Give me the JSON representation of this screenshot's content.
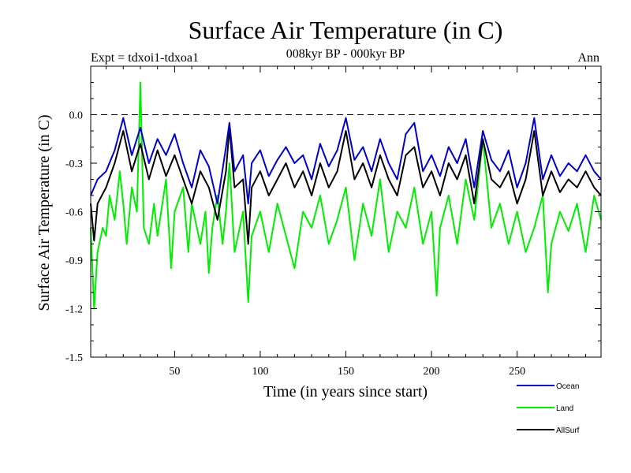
{
  "chart_data": {
    "type": "line",
    "title": "Surface Air Temperature (in C)",
    "subtitle": "008kyr BP - 000kyr BP",
    "experiment": "Expt = tdxoi1-tdxoa1",
    "period": "Ann",
    "xlabel": "Time (in years since start)",
    "ylabel": "Surface Air Temperature (in C)",
    "xlim": [
      1,
      299
    ],
    "ylim": [
      -1.5,
      0.3
    ],
    "xticks": [
      50,
      100,
      150,
      200,
      250
    ],
    "yticks": [
      -1.5,
      -1.2,
      -0.9,
      -0.6,
      -0.3,
      0.0
    ],
    "ytick_labels": [
      "-1.5",
      "-1.2",
      "-0.9",
      "-0.6",
      "-0.3",
      "0.0"
    ],
    "reference_line": 0.0,
    "legend": [
      "Ocean",
      "Land",
      "AllSurf"
    ],
    "series": [
      {
        "name": "Ocean",
        "color": "#0000cc",
        "x": [
          1,
          5,
          10,
          15,
          20,
          25,
          30,
          35,
          40,
          45,
          50,
          55,
          60,
          65,
          70,
          75,
          80,
          82,
          85,
          90,
          93,
          95,
          100,
          105,
          110,
          115,
          120,
          125,
          130,
          135,
          140,
          145,
          150,
          155,
          160,
          165,
          170,
          175,
          180,
          185,
          190,
          195,
          200,
          205,
          210,
          215,
          220,
          225,
          230,
          235,
          240,
          245,
          250,
          255,
          260,
          265,
          270,
          275,
          280,
          285,
          290,
          295,
          299
        ],
        "values": [
          -0.5,
          -0.4,
          -0.35,
          -0.22,
          -0.02,
          -0.25,
          -0.08,
          -0.3,
          -0.15,
          -0.25,
          -0.12,
          -0.3,
          -0.45,
          -0.22,
          -0.32,
          -0.55,
          -0.2,
          -0.05,
          -0.35,
          -0.25,
          -0.55,
          -0.3,
          -0.22,
          -0.38,
          -0.28,
          -0.2,
          -0.3,
          -0.25,
          -0.4,
          -0.18,
          -0.32,
          -0.22,
          -0.02,
          -0.28,
          -0.2,
          -0.35,
          -0.15,
          -0.3,
          -0.4,
          -0.12,
          -0.05,
          -0.35,
          -0.25,
          -0.38,
          -0.2,
          -0.3,
          -0.15,
          -0.45,
          -0.1,
          -0.28,
          -0.35,
          -0.22,
          -0.45,
          -0.3,
          -0.02,
          -0.4,
          -0.25,
          -0.38,
          -0.3,
          -0.35,
          -0.25,
          -0.35,
          -0.4
        ]
      },
      {
        "name": "Land",
        "color": "#00ee00",
        "x": [
          1,
          3,
          5,
          8,
          10,
          12,
          15,
          18,
          20,
          22,
          25,
          28,
          30,
          32,
          35,
          38,
          40,
          45,
          48,
          50,
          55,
          58,
          60,
          65,
          68,
          70,
          72,
          75,
          78,
          80,
          82,
          85,
          88,
          90,
          93,
          95,
          100,
          105,
          110,
          115,
          120,
          125,
          130,
          135,
          140,
          145,
          150,
          155,
          160,
          165,
          170,
          175,
          180,
          185,
          190,
          195,
          200,
          203,
          205,
          210,
          215,
          220,
          225,
          230,
          235,
          240,
          245,
          250,
          255,
          260,
          265,
          268,
          270,
          275,
          280,
          285,
          290,
          295,
          299
        ],
        "values": [
          -0.7,
          -1.2,
          -0.85,
          -0.7,
          -0.75,
          -0.5,
          -0.65,
          -0.35,
          -0.55,
          -0.8,
          -0.45,
          -0.6,
          0.2,
          -0.7,
          -0.8,
          -0.55,
          -0.75,
          -0.4,
          -0.95,
          -0.6,
          -0.45,
          -0.85,
          -0.55,
          -0.8,
          -0.6,
          -0.98,
          -0.7,
          -0.5,
          -0.8,
          -0.6,
          -0.3,
          -0.85,
          -0.7,
          -0.6,
          -1.16,
          -0.75,
          -0.6,
          -0.85,
          -0.55,
          -0.75,
          -0.95,
          -0.6,
          -0.7,
          -0.5,
          -0.8,
          -0.65,
          -0.45,
          -0.9,
          -0.55,
          -0.75,
          -0.4,
          -0.85,
          -0.6,
          -0.7,
          -0.45,
          -0.8,
          -0.6,
          -1.12,
          -0.7,
          -0.5,
          -0.8,
          -0.4,
          -0.65,
          -0.15,
          -0.7,
          -0.55,
          -0.8,
          -0.6,
          -0.85,
          -0.7,
          -0.5,
          -1.1,
          -0.8,
          -0.6,
          -0.72,
          -0.55,
          -0.85,
          -0.5,
          -0.65
        ]
      },
      {
        "name": "AllSurf",
        "color": "#000000",
        "x": [
          1,
          3,
          5,
          10,
          15,
          20,
          25,
          30,
          35,
          40,
          45,
          50,
          55,
          60,
          65,
          70,
          75,
          80,
          82,
          85,
          90,
          93,
          95,
          100,
          105,
          110,
          115,
          120,
          125,
          130,
          135,
          140,
          145,
          150,
          155,
          160,
          165,
          170,
          175,
          180,
          185,
          190,
          195,
          200,
          205,
          210,
          215,
          220,
          225,
          230,
          235,
          240,
          245,
          250,
          255,
          260,
          265,
          270,
          275,
          280,
          285,
          290,
          295,
          299
        ],
        "values": [
          -0.55,
          -0.78,
          -0.55,
          -0.45,
          -0.3,
          -0.1,
          -0.35,
          -0.18,
          -0.4,
          -0.22,
          -0.38,
          -0.25,
          -0.4,
          -0.55,
          -0.35,
          -0.45,
          -0.65,
          -0.35,
          -0.08,
          -0.45,
          -0.4,
          -0.8,
          -0.45,
          -0.35,
          -0.5,
          -0.4,
          -0.3,
          -0.45,
          -0.35,
          -0.5,
          -0.3,
          -0.45,
          -0.35,
          -0.1,
          -0.4,
          -0.3,
          -0.45,
          -0.25,
          -0.4,
          -0.5,
          -0.25,
          -0.2,
          -0.45,
          -0.35,
          -0.5,
          -0.3,
          -0.4,
          -0.25,
          -0.55,
          -0.15,
          -0.4,
          -0.45,
          -0.35,
          -0.55,
          -0.4,
          -0.1,
          -0.5,
          -0.35,
          -0.48,
          -0.4,
          -0.45,
          -0.35,
          -0.45,
          -0.5
        ]
      }
    ]
  }
}
